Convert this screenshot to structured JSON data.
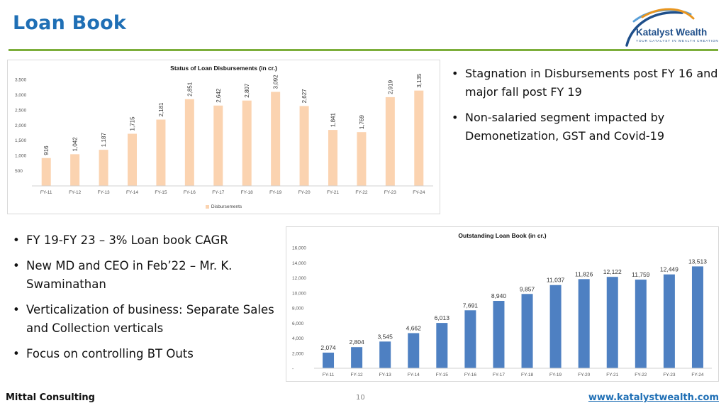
{
  "page": {
    "title": "Loan Book",
    "footer_left": "Mittal Consulting",
    "page_number": "10",
    "footer_right": "www.katalystwealth.com"
  },
  "logo": {
    "name": "Katalyst Wealth",
    "tagline": "YOUR CATALYST IN WEALTH CREATION"
  },
  "colors": {
    "title": "#1f6fb5",
    "rule": "#7cae3a",
    "disbursement_bar": "#fbd3b0",
    "loan_book_bar": "#4e80c2"
  },
  "bullets_right": [
    "Stagnation in Disbursements post FY 16 and major fall post FY 19",
    "Non-salaried segment impacted by Demonetization, GST and Covid-19"
  ],
  "bullets_left": [
    "FY 19-FY 23 – 3% Loan book CAGR",
    "New MD and CEO in Feb’22 – Mr. K. Swaminathan",
    "Verticalization of business: Separate Sales and Collection verticals",
    "Focus on controlling BT Outs"
  ],
  "chart_data": [
    {
      "type": "bar",
      "title": "Status of Loan Disbursements (in cr.)",
      "categories": [
        "FY-11",
        "FY-12",
        "FY-13",
        "FY-14",
        "FY-15",
        "FY-16",
        "FY-17",
        "FY-18",
        "FY-19",
        "FY-20",
        "FY-21",
        "FY-22",
        "FY-23",
        "FY-24"
      ],
      "series": [
        {
          "name": "Disbursements",
          "values": [
            916,
            1042,
            1187,
            1715,
            2181,
            2851,
            2642,
            2807,
            3092,
            2627,
            1841,
            1769,
            2919,
            3135
          ],
          "labels": [
            "916",
            "1,042",
            "1,187",
            "1,715",
            "2,181",
            "2,851",
            "2,642",
            "2,807",
            "3,092",
            "2,627",
            "1,841",
            "1,769",
            "2,919",
            "3,135"
          ]
        }
      ],
      "ylim": [
        0,
        3500
      ],
      "yticks": [
        500,
        1000,
        1500,
        2000,
        2500,
        3000,
        3500
      ],
      "ytick_labels": [
        "500",
        "1,000",
        "1,500",
        "2,000",
        "2,500",
        "3,000",
        "3,500"
      ],
      "data_label_rotation": "vertical",
      "legend": "bottom",
      "grid": false
    },
    {
      "type": "bar",
      "title": "Outstanding Loan Book (in cr.)",
      "categories": [
        "FY-11",
        "FY-12",
        "FY-13",
        "FY-14",
        "FY-15",
        "FY-16",
        "FY-17",
        "FY-18",
        "FY-19",
        "FY-20",
        "FY-21",
        "FY-22",
        "FY-23",
        "FY-24"
      ],
      "series": [
        {
          "values": [
            2074,
            2804,
            3545,
            4662,
            6013,
            7691,
            8940,
            9857,
            11037,
            11826,
            12122,
            11759,
            12449,
            13513
          ],
          "labels": [
            "2,074",
            "2,804",
            "3,545",
            "4,662",
            "6,013",
            "7,691",
            "8,940",
            "9,857",
            "11,037",
            "11,826",
            "12,122",
            "11,759",
            "12,449",
            "13,513"
          ]
        }
      ],
      "ylim": [
        0,
        16000
      ],
      "yticks": [
        0,
        2000,
        4000,
        6000,
        8000,
        10000,
        12000,
        14000,
        16000
      ],
      "ytick_labels": [
        "-",
        "2,000",
        "4,000",
        "6,000",
        "8,000",
        "10,000",
        "12,000",
        "14,000",
        "16,000"
      ],
      "data_label_rotation": "horizontal",
      "legend": "none",
      "grid": false
    }
  ]
}
